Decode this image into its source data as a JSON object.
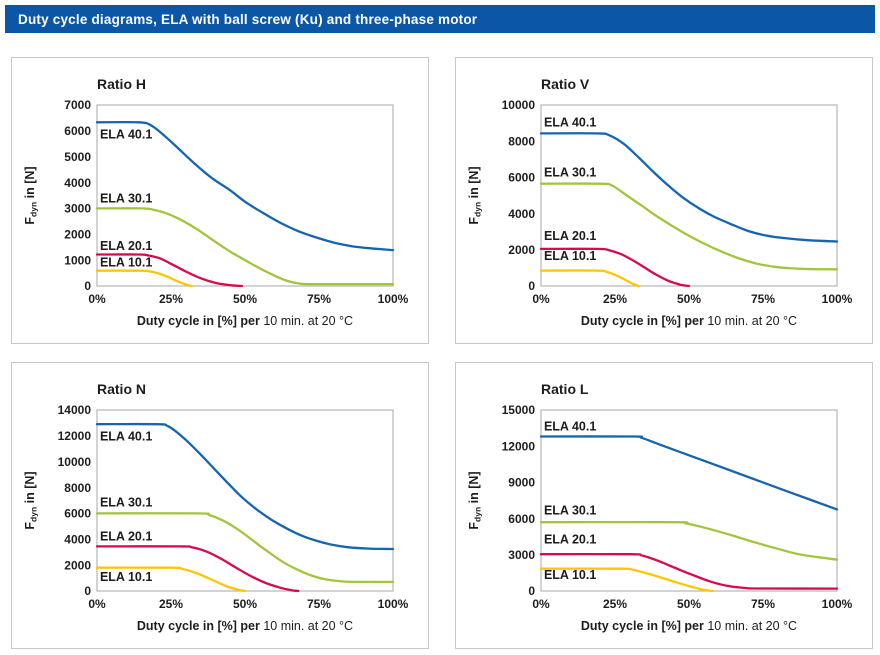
{
  "header": {
    "title": "Duty cycle diagrams, ELA with ball screw (Ku) and three-phase motor",
    "bg_color": "#0b57a5",
    "text_color": "#ffffff"
  },
  "colors": {
    "ela_40_1": "#1565b0",
    "ela_30_1": "#a3c53d",
    "ela_20_1": "#d60b4e",
    "ela_10_1": "#fcc605",
    "plot_frame": "#b3b6b9",
    "panel_border": "#c5c8cb",
    "text": "#1d1d1b"
  },
  "chart_data": [
    {
      "type": "line",
      "title": "Ratio H",
      "xlabel_bold": "Duty cycle in [%] per",
      "xlabel_regular": " 10 min. at 20 °C",
      "ylabel_prefix": "F",
      "ylabel_sub": "dyn",
      "ylabel_suffix": " in [N]",
      "grid": false,
      "legend_position": "inline-labels",
      "xlim": [
        0,
        100
      ],
      "ylim": [
        0,
        7000
      ],
      "x_ticks": [
        0,
        25,
        50,
        75,
        100
      ],
      "x_tick_labels": [
        "0%",
        "25%",
        "50%",
        "75%",
        "100%"
      ],
      "y_ticks": [
        0,
        1000,
        2000,
        3000,
        4000,
        5000,
        6000,
        7000
      ],
      "series": [
        {
          "name": "ELA 40.1",
          "color_key": "ela_40_1",
          "label_x": 1,
          "label_y": 5700,
          "points": [
            [
              0,
              6330
            ],
            [
              14,
              6330
            ],
            [
              18,
              6230
            ],
            [
              22,
              5890
            ],
            [
              27,
              5370
            ],
            [
              33,
              4730
            ],
            [
              39,
              4160
            ],
            [
              45,
              3700
            ],
            [
              50,
              3260
            ],
            [
              56,
              2830
            ],
            [
              62,
              2440
            ],
            [
              68,
              2120
            ],
            [
              74,
              1880
            ],
            [
              80,
              1680
            ],
            [
              86,
              1540
            ],
            [
              92,
              1460
            ],
            [
              100,
              1390
            ]
          ]
        },
        {
          "name": "ELA 30.1",
          "color_key": "ela_30_1",
          "label_x": 1,
          "label_y": 3220,
          "points": [
            [
              0,
              3000
            ],
            [
              15,
              3000
            ],
            [
              19,
              2950
            ],
            [
              24,
              2790
            ],
            [
              29,
              2520
            ],
            [
              34,
              2180
            ],
            [
              40,
              1710
            ],
            [
              45,
              1330
            ],
            [
              50,
              1000
            ],
            [
              55,
              680
            ],
            [
              60,
              400
            ],
            [
              64,
              210
            ],
            [
              68,
              100
            ],
            [
              73,
              75
            ],
            [
              100,
              75
            ]
          ]
        },
        {
          "name": "ELA 20.1",
          "color_key": "ela_20_1",
          "label_x": 1,
          "label_y": 1390,
          "points": [
            [
              0,
              1220
            ],
            [
              14,
              1220
            ],
            [
              17,
              1190
            ],
            [
              21,
              1080
            ],
            [
              25,
              860
            ],
            [
              30,
              560
            ],
            [
              35,
              300
            ],
            [
              40,
              120
            ],
            [
              45,
              30
            ],
            [
              49,
              0
            ]
          ]
        },
        {
          "name": "ELA 10.1",
          "color_key": "ela_10_1",
          "label_x": 1,
          "label_y": 760,
          "points": [
            [
              0,
              590
            ],
            [
              15,
              590
            ],
            [
              18,
              560
            ],
            [
              21,
              480
            ],
            [
              24,
              350
            ],
            [
              27,
              190
            ],
            [
              30,
              60
            ],
            [
              32,
              0
            ]
          ]
        }
      ]
    },
    {
      "type": "line",
      "title": "Ratio V",
      "xlabel_bold": "Duty cycle in [%] per",
      "xlabel_regular": " 10 min. at 20 °C",
      "ylabel_prefix": "F",
      "ylabel_sub": "dyn",
      "ylabel_suffix": " in [N]",
      "grid": false,
      "legend_position": "inline-labels",
      "xlim": [
        0,
        100
      ],
      "ylim": [
        0,
        10000
      ],
      "x_ticks": [
        0,
        25,
        50,
        75,
        100
      ],
      "x_tick_labels": [
        "0%",
        "25%",
        "50%",
        "75%",
        "100%"
      ],
      "y_ticks": [
        0,
        2000,
        4000,
        6000,
        8000,
        10000
      ],
      "series": [
        {
          "name": "ELA 40.1",
          "color_key": "ela_40_1",
          "label_x": 1,
          "label_y": 8800,
          "points": [
            [
              0,
              8430
            ],
            [
              19,
              8430
            ],
            [
              23,
              8330
            ],
            [
              28,
              7850
            ],
            [
              33,
              7100
            ],
            [
              38,
              6300
            ],
            [
              43,
              5550
            ],
            [
              48,
              4880
            ],
            [
              53,
              4330
            ],
            [
              58,
              3870
            ],
            [
              64,
              3430
            ],
            [
              70,
              3040
            ],
            [
              76,
              2790
            ],
            [
              82,
              2650
            ],
            [
              90,
              2530
            ],
            [
              100,
              2460
            ]
          ]
        },
        {
          "name": "ELA 30.1",
          "color_key": "ela_30_1",
          "label_x": 1,
          "label_y": 6050,
          "points": [
            [
              0,
              5650
            ],
            [
              20,
              5650
            ],
            [
              24,
              5550
            ],
            [
              29,
              5000
            ],
            [
              34,
              4440
            ],
            [
              39,
              3870
            ],
            [
              44,
              3350
            ],
            [
              49,
              2870
            ],
            [
              55,
              2350
            ],
            [
              61,
              1900
            ],
            [
              67,
              1520
            ],
            [
              73,
              1230
            ],
            [
              79,
              1060
            ],
            [
              85,
              970
            ],
            [
              92,
              930
            ],
            [
              100,
              920
            ]
          ]
        },
        {
          "name": "ELA 20.1",
          "color_key": "ela_20_1",
          "label_x": 1,
          "label_y": 2540,
          "points": [
            [
              0,
              2050
            ],
            [
              19,
              2050
            ],
            [
              23,
              1980
            ],
            [
              27,
              1760
            ],
            [
              31,
              1420
            ],
            [
              35,
              1020
            ],
            [
              39,
              620
            ],
            [
              43,
              290
            ],
            [
              47,
              80
            ],
            [
              50,
              0
            ]
          ]
        },
        {
          "name": "ELA 10.1",
          "color_key": "ela_10_1",
          "label_x": 1,
          "label_y": 1430,
          "points": [
            [
              0,
              850
            ],
            [
              19,
              850
            ],
            [
              22,
              790
            ],
            [
              25,
              620
            ],
            [
              28,
              380
            ],
            [
              31,
              120
            ],
            [
              33,
              0
            ]
          ]
        }
      ]
    },
    {
      "type": "line",
      "title": "Ratio N",
      "xlabel_bold": "Duty cycle in [%] per",
      "xlabel_regular": " 10 min. at 20 °C",
      "ylabel_prefix": "F",
      "ylabel_sub": "dyn",
      "ylabel_suffix": " in [N]",
      "grid": false,
      "legend_position": "inline-labels",
      "xlim": [
        0,
        100
      ],
      "ylim": [
        0,
        14000
      ],
      "x_ticks": [
        0,
        25,
        50,
        75,
        100
      ],
      "x_tick_labels": [
        "0%",
        "25%",
        "50%",
        "75%",
        "100%"
      ],
      "y_ticks": [
        0,
        2000,
        4000,
        6000,
        8000,
        10000,
        12000,
        14000
      ],
      "series": [
        {
          "name": "ELA 40.1",
          "color_key": "ela_40_1",
          "label_x": 1,
          "label_y": 11650,
          "points": [
            [
              0,
              12900
            ],
            [
              20,
              12900
            ],
            [
              24,
              12750
            ],
            [
              29,
              11900
            ],
            [
              34,
              10800
            ],
            [
              39,
              9600
            ],
            [
              44,
              8400
            ],
            [
              49,
              7250
            ],
            [
              54,
              6300
            ],
            [
              59,
              5500
            ],
            [
              64,
              4850
            ],
            [
              69,
              4300
            ],
            [
              74,
              3900
            ],
            [
              79,
              3600
            ],
            [
              85,
              3380
            ],
            [
              92,
              3280
            ],
            [
              100,
              3250
            ]
          ]
        },
        {
          "name": "ELA 30.1",
          "color_key": "ela_30_1",
          "label_x": 1,
          "label_y": 6530,
          "points": [
            [
              0,
              6000
            ],
            [
              34,
              6000
            ],
            [
              38,
              5870
            ],
            [
              43,
              5400
            ],
            [
              48,
              4700
            ],
            [
              53,
              3850
            ],
            [
              58,
              3000
            ],
            [
              63,
              2220
            ],
            [
              68,
              1620
            ],
            [
              73,
              1150
            ],
            [
              78,
              870
            ],
            [
              84,
              730
            ],
            [
              92,
              700
            ],
            [
              100,
              700
            ]
          ]
        },
        {
          "name": "ELA 20.1",
          "color_key": "ela_20_1",
          "label_x": 1,
          "label_y": 3890,
          "points": [
            [
              0,
              3450
            ],
            [
              28,
              3450
            ],
            [
              32,
              3380
            ],
            [
              37,
              3050
            ],
            [
              42,
              2480
            ],
            [
              47,
              1800
            ],
            [
              52,
              1150
            ],
            [
              57,
              620
            ],
            [
              62,
              250
            ],
            [
              66,
              50
            ],
            [
              68,
              0
            ]
          ]
        },
        {
          "name": "ELA 10.1",
          "color_key": "ela_10_1",
          "label_x": 1,
          "label_y": 780,
          "points": [
            [
              0,
              1800
            ],
            [
              25,
              1800
            ],
            [
              29,
              1700
            ],
            [
              34,
              1350
            ],
            [
              39,
              850
            ],
            [
              44,
              350
            ],
            [
              48,
              80
            ],
            [
              50,
              0
            ]
          ]
        }
      ]
    },
    {
      "type": "line",
      "title": "Ratio L",
      "xlabel_bold": "Duty cycle in [%] per",
      "xlabel_regular": " 10 min. at 20 °C",
      "ylabel_prefix": "F",
      "ylabel_sub": "dyn",
      "ylabel_suffix": " in [N]",
      "grid": false,
      "legend_position": "inline-labels",
      "xlim": [
        0,
        100
      ],
      "ylim": [
        0,
        15000
      ],
      "x_ticks": [
        0,
        25,
        50,
        75,
        100
      ],
      "x_tick_labels": [
        "0%",
        "25%",
        "50%",
        "75%",
        "100%"
      ],
      "y_ticks": [
        0,
        3000,
        6000,
        9000,
        12000,
        15000
      ],
      "series": [
        {
          "name": "ELA 40.1",
          "color_key": "ela_40_1",
          "label_x": 1,
          "label_y": 13300,
          "points": [
            [
              0,
              12800
            ],
            [
              31,
              12800
            ],
            [
              34,
              12700
            ],
            [
              40,
              12150
            ],
            [
              55,
              10800
            ],
            [
              70,
              9450
            ],
            [
              85,
              8100
            ],
            [
              100,
              6760
            ]
          ]
        },
        {
          "name": "ELA 30.1",
          "color_key": "ela_30_1",
          "label_x": 1,
          "label_y": 6320,
          "points": [
            [
              0,
              5700
            ],
            [
              45,
              5700
            ],
            [
              49,
              5600
            ],
            [
              56,
              5200
            ],
            [
              64,
              4650
            ],
            [
              72,
              4050
            ],
            [
              80,
              3500
            ],
            [
              88,
              3000
            ],
            [
              100,
              2600
            ]
          ]
        },
        {
          "name": "ELA 20.1",
          "color_key": "ela_20_1",
          "label_x": 1,
          "label_y": 3950,
          "points": [
            [
              0,
              3050
            ],
            [
              30,
              3050
            ],
            [
              34,
              2950
            ],
            [
              39,
              2550
            ],
            [
              45,
              1950
            ],
            [
              51,
              1350
            ],
            [
              57,
              800
            ],
            [
              63,
              420
            ],
            [
              69,
              250
            ],
            [
              74,
              210
            ],
            [
              100,
              200
            ]
          ]
        },
        {
          "name": "ELA 10.1",
          "color_key": "ela_10_1",
          "label_x": 1,
          "label_y": 1000,
          "points": [
            [
              0,
              1850
            ],
            [
              27,
              1850
            ],
            [
              31,
              1760
            ],
            [
              36,
              1450
            ],
            [
              42,
              1000
            ],
            [
              48,
              550
            ],
            [
              54,
              150
            ],
            [
              58,
              0
            ]
          ]
        }
      ]
    }
  ]
}
